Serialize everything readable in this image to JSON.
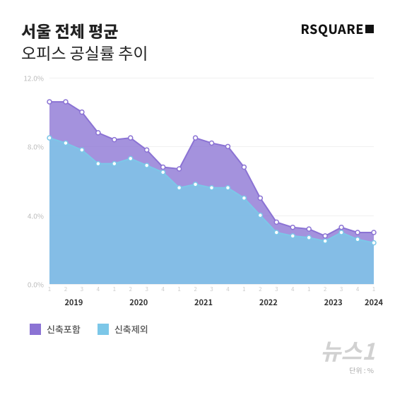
{
  "header": {
    "title_bold": "서울 전체 평균",
    "title_light": "오피스 공실률 추이",
    "brand": "RSQUARE"
  },
  "chart": {
    "type": "area",
    "background_color": "#ffffff",
    "grid_color": "#f0f0f0",
    "ylim": [
      0,
      12
    ],
    "ytick_step": 4,
    "ytick_labels": [
      "0.0%",
      "4.0%",
      "8.0%",
      "12.0%"
    ],
    "year_groups": [
      {
        "label": "2019",
        "quarters": [
          "1",
          "2",
          "3",
          "4"
        ]
      },
      {
        "label": "2020",
        "quarters": [
          "1",
          "2",
          "3",
          "4"
        ]
      },
      {
        "label": "2021",
        "quarters": [
          "1",
          "2",
          "3",
          "4"
        ]
      },
      {
        "label": "2022",
        "quarters": [
          "1",
          "2",
          "3",
          "4"
        ]
      },
      {
        "label": "2023",
        "quarters": [
          "1",
          "2",
          "3",
          "4"
        ]
      },
      {
        "label": "2024",
        "quarters": [
          "1"
        ]
      }
    ],
    "series": [
      {
        "name": "신축포함",
        "color": "#8b73d4",
        "fill_opacity": 0.78,
        "marker_color": "#ffffff",
        "marker_stroke": "#8b73d4",
        "marker_radius": 3,
        "values": [
          10.6,
          10.6,
          10.0,
          8.8,
          8.4,
          8.5,
          7.8,
          6.8,
          6.7,
          8.5,
          8.2,
          8.0,
          6.8,
          5.0,
          3.6,
          3.3,
          3.2,
          2.8,
          3.3,
          3.0,
          3.0
        ]
      },
      {
        "name": "신축제외",
        "color": "#7cc7e8",
        "fill_opacity": 0.82,
        "marker_color": "#ffffff",
        "marker_stroke": "#7cc7e8",
        "marker_radius": 3,
        "values": [
          8.5,
          8.2,
          7.8,
          7.0,
          7.0,
          7.3,
          6.9,
          6.5,
          5.6,
          5.8,
          5.6,
          5.6,
          5.0,
          4.0,
          3.0,
          2.8,
          2.7,
          2.5,
          3.0,
          2.6,
          2.4
        ]
      }
    ],
    "n_points": 21
  },
  "legend": {
    "items": [
      {
        "label": "신축포함",
        "color": "#8b73d4"
      },
      {
        "label": "신축제외",
        "color": "#7cc7e8"
      }
    ]
  },
  "unit_label": "단위 : %",
  "watermark": "뉴스1"
}
